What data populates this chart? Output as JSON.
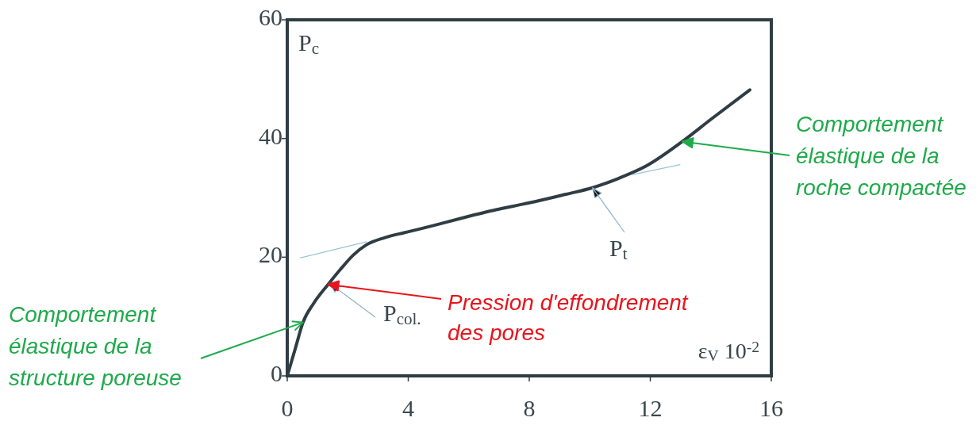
{
  "chart_data": {
    "type": "line",
    "xlabel": "ε$_{V}$ 10$^{-2}$",
    "ylabel": "P$_{c}$",
    "xlim": [
      0,
      16
    ],
    "xticks": [
      0,
      4,
      8,
      12,
      16
    ],
    "ylim": [
      0,
      60
    ],
    "yticks": [
      0,
      20,
      40,
      60
    ],
    "series": [
      {
        "color": "#2f3d44",
        "x": [
          0,
          0.26,
          0.52,
          0.87,
          1.35,
          1.75,
          2.19,
          2.62,
          3.23,
          3.93,
          4.81,
          5.7,
          6.82,
          7.47,
          8.3,
          9.21,
          10.09,
          10.96,
          11.84,
          13.06,
          14.02,
          15.29
        ],
        "values": [
          0,
          4.5,
          9.0,
          12.2,
          15.4,
          17.9,
          20.4,
          22.1,
          23.3,
          24.2,
          25.3,
          26.5,
          27.9,
          28.6,
          29.5,
          30.6,
          31.7,
          33.3,
          35.3,
          39.5,
          43.3,
          48.2
        ]
      },
      {
        "type": "line",
        "color": "#9cc3d8",
        "x": [
          0.44,
          2.62
        ],
        "values": [
          19.9,
          22.6
        ]
      },
      {
        "type": "line",
        "color": "#9cc3d8",
        "x": [
          11.4,
          12.98
        ],
        "values": [
          33.9,
          35.6
        ]
      }
    ],
    "annotations": [
      {
        "text": "P$_{col.}$",
        "x": 1.4,
        "y": 15.6
      },
      {
        "text": "P$_{t}$",
        "x": 10.09,
        "y": 31.7
      },
      {
        "text": "Pression d'effondrement des pores",
        "x": 1.35,
        "y": 15.4
      },
      {
        "text": "Comportement élastique de la structure poreuse",
        "x": 0.52,
        "y": 9.0
      },
      {
        "text": "Comportement élastique de la roche compactée",
        "x": 13.06,
        "y": 39.5
      }
    ]
  }
}
